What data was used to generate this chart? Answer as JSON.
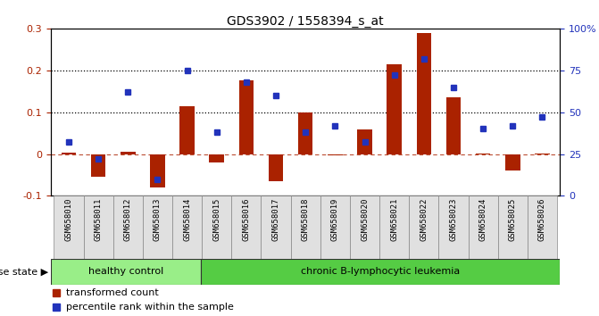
{
  "title": "GDS3902 / 1558394_s_at",
  "samples": [
    "GSM658010",
    "GSM658011",
    "GSM658012",
    "GSM658013",
    "GSM658014",
    "GSM658015",
    "GSM658016",
    "GSM658017",
    "GSM658018",
    "GSM658019",
    "GSM658020",
    "GSM658021",
    "GSM658022",
    "GSM658023",
    "GSM658024",
    "GSM658025",
    "GSM658026"
  ],
  "red_values": [
    0.003,
    -0.055,
    0.005,
    -0.08,
    0.115,
    -0.02,
    0.175,
    -0.065,
    0.1,
    -0.003,
    0.058,
    0.215,
    0.29,
    0.135,
    0.002,
    -0.04,
    0.002
  ],
  "blue_pct": [
    32,
    22,
    62,
    10,
    75,
    38,
    68,
    60,
    38,
    42,
    32,
    72,
    82,
    65,
    40,
    42,
    47
  ],
  "healthy_control_count": 5,
  "disease_state_label": "disease state",
  "healthy_label": "healthy control",
  "leukemia_label": "chronic B-lymphocytic leukemia",
  "legend_red": "transformed count",
  "legend_blue": "percentile rank within the sample",
  "red_color": "#aa2200",
  "blue_color": "#2233bb",
  "healthy_bg": "#99ee88",
  "leukemia_bg": "#55cc44",
  "ylim_left": [
    -0.1,
    0.3
  ],
  "ylim_right": [
    0,
    100
  ],
  "yticks_left": [
    -0.1,
    0.0,
    0.1,
    0.2,
    0.3
  ],
  "yticks_left_labels": [
    "-0.1",
    "0",
    "0.1",
    "0.2",
    "0.3"
  ],
  "yticks_right": [
    0,
    25,
    50,
    75,
    100
  ],
  "yticks_right_labels": [
    "0",
    "25",
    "50",
    "75",
    "100%"
  ]
}
